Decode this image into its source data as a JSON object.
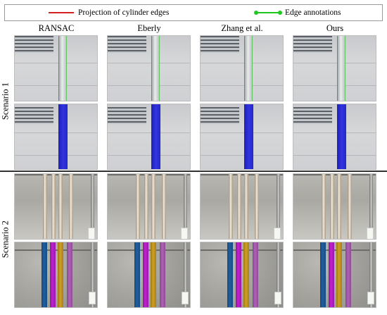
{
  "legend": {
    "projection_label": "Projection of cylinder edges",
    "annotation_label": "Edge annotations",
    "colors": {
      "projection": "#d42020",
      "annotation": "#1ec81e"
    }
  },
  "columns": [
    "RANSAC",
    "Eberly",
    "Zhang et al.",
    "Ours"
  ],
  "rows": {
    "scenario1": "Scenario 1",
    "scenario2": "Scenario 2"
  },
  "colors": {
    "scenario1_cylinder": "#3335e0",
    "scenario2_cylinders": [
      "#1e5fa0",
      "#c020d0",
      "#d0a020",
      "#b060b8"
    ]
  }
}
